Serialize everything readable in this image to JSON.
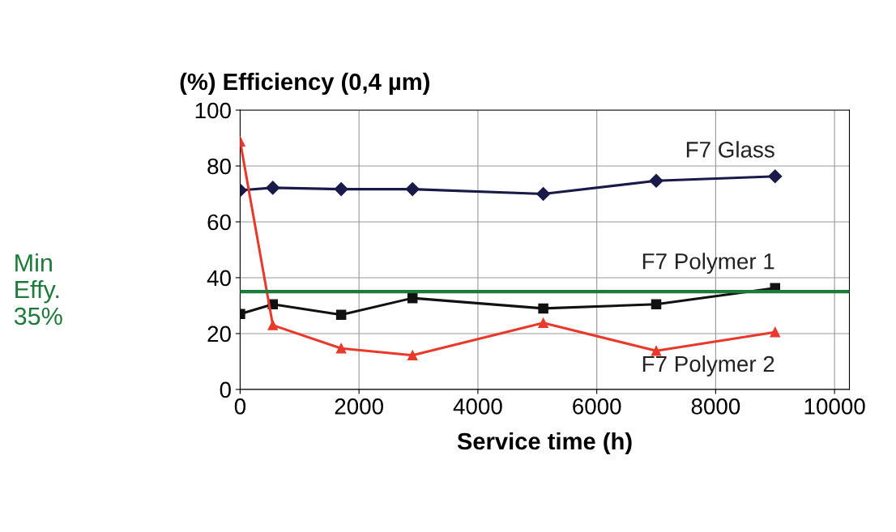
{
  "chart_data": {
    "type": "line",
    "title": "(%) Efficiency (0,4 µm)",
    "xlabel": "Service time (h)",
    "xlim": [
      0,
      10250
    ],
    "xticks": [
      0,
      2000,
      4000,
      6000,
      8000,
      10000
    ],
    "ylim": [
      0,
      100
    ],
    "yticks": [
      0,
      20,
      40,
      60,
      80,
      100
    ],
    "grid": true,
    "legend": false,
    "series": [
      {
        "name": "F7 Glass",
        "color": "#1a1a4a",
        "marker": "diamond",
        "x": [
          0,
          550,
          1700,
          2900,
          5100,
          7000,
          9000
        ],
        "values": [
          71.3,
          72.2,
          71.7,
          71.7,
          70,
          74.7,
          76.3
        ]
      },
      {
        "name": "F7 Polymer 1",
        "color": "#111111",
        "marker": "square",
        "x": [
          0,
          550,
          1700,
          2900,
          5100,
          7000,
          9000
        ],
        "values": [
          27,
          30.5,
          26.7,
          32.7,
          29,
          30.5,
          36.3
        ]
      },
      {
        "name": "F7 Polymer 2",
        "color": "#e8392a",
        "marker": "triangle",
        "x": [
          0,
          550,
          1700,
          2900,
          5100,
          7000,
          9000
        ],
        "values": [
          88.8,
          23,
          14.7,
          12.2,
          23.8,
          13.8,
          20.5
        ]
      }
    ],
    "ref_lines": [
      {
        "axis": "y",
        "value": 35,
        "label": "Min\nEffy.\n35%",
        "color": "#1e7a3a",
        "line_style": "solid"
      }
    ]
  }
}
